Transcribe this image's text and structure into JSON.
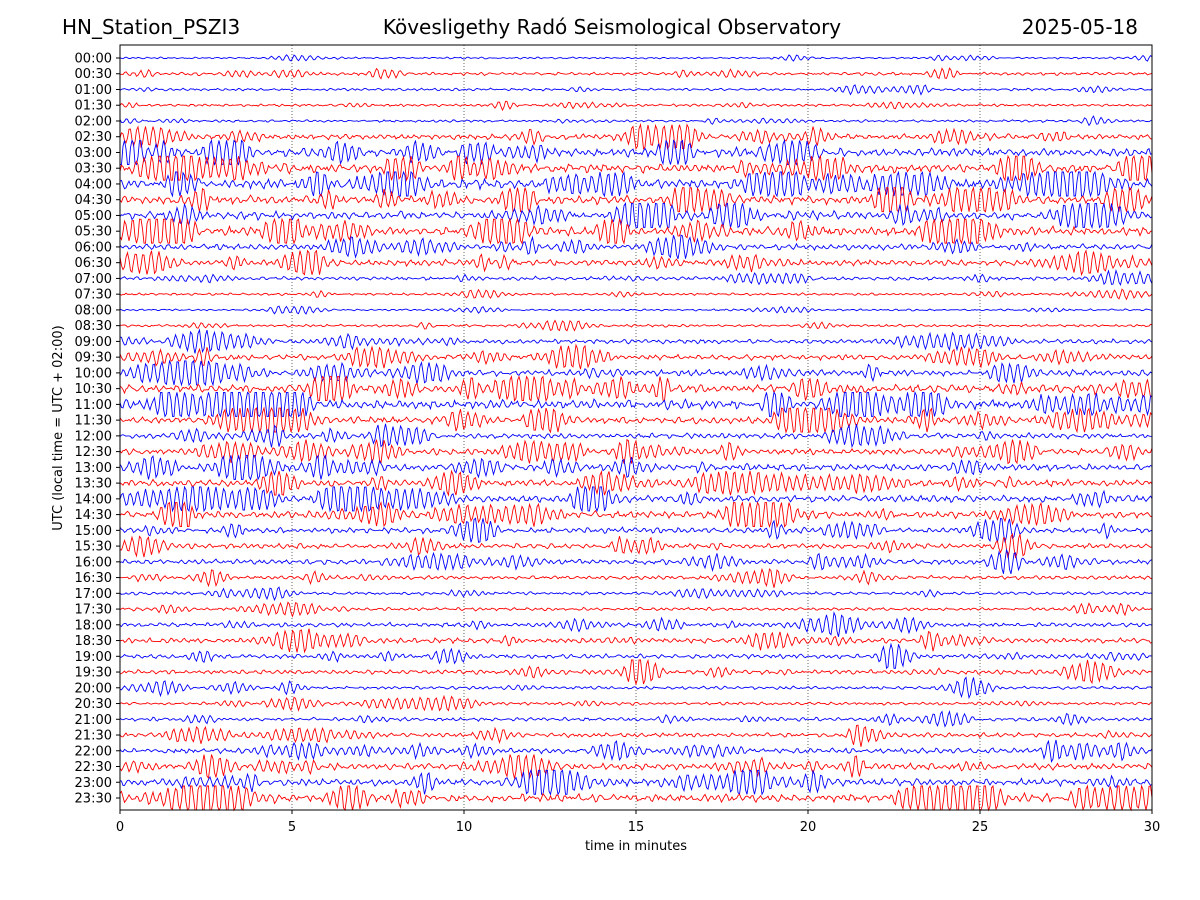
{
  "header": {
    "station": "HN_Station_PSZI3",
    "observatory": "Kövesligethy Radó Seismological Observatory",
    "date": "2025-05-18"
  },
  "chart_data": {
    "type": "line",
    "subtype": "helicorder",
    "xlabel": "time in minutes",
    "ylabel": "UTC (local time = UTC + 02:00)",
    "xlim": [
      0,
      30
    ],
    "x_ticks": [
      "0",
      "5",
      "10",
      "15",
      "20",
      "25",
      "30"
    ],
    "grid": "vertical dotted at x ticks",
    "colors": [
      "#0000ff",
      "#ff0000"
    ],
    "rows": [
      "00:00",
      "00:30",
      "01:00",
      "01:30",
      "02:00",
      "02:30",
      "03:00",
      "03:30",
      "04:00",
      "04:30",
      "05:00",
      "05:30",
      "06:00",
      "06:30",
      "07:00",
      "07:30",
      "08:00",
      "08:30",
      "09:00",
      "09:30",
      "10:00",
      "10:30",
      "11:00",
      "11:30",
      "12:00",
      "12:30",
      "13:00",
      "13:30",
      "14:00",
      "14:30",
      "15:00",
      "15:30",
      "16:00",
      "16:30",
      "17:00",
      "17:30",
      "18:00",
      "18:30",
      "19:00",
      "19:30",
      "20:00",
      "20:30",
      "21:00",
      "21:30",
      "22:00",
      "22:30",
      "23:00",
      "23:30"
    ],
    "relative_activity": [
      0.3,
      0.5,
      0.4,
      0.4,
      0.4,
      0.9,
      1.3,
      1.4,
      1.5,
      1.4,
      1.3,
      1.4,
      0.9,
      1.0,
      0.6,
      0.4,
      0.3,
      0.4,
      0.7,
      0.9,
      1.0,
      1.3,
      1.5,
      1.1,
      0.9,
      1.0,
      1.1,
      1.1,
      1.1,
      1.1,
      0.9,
      0.8,
      0.8,
      0.6,
      0.5,
      0.5,
      0.7,
      0.8,
      0.7,
      0.7,
      0.5,
      0.5,
      0.6,
      0.7,
      0.9,
      1.0,
      1.1,
      1.3
    ]
  }
}
